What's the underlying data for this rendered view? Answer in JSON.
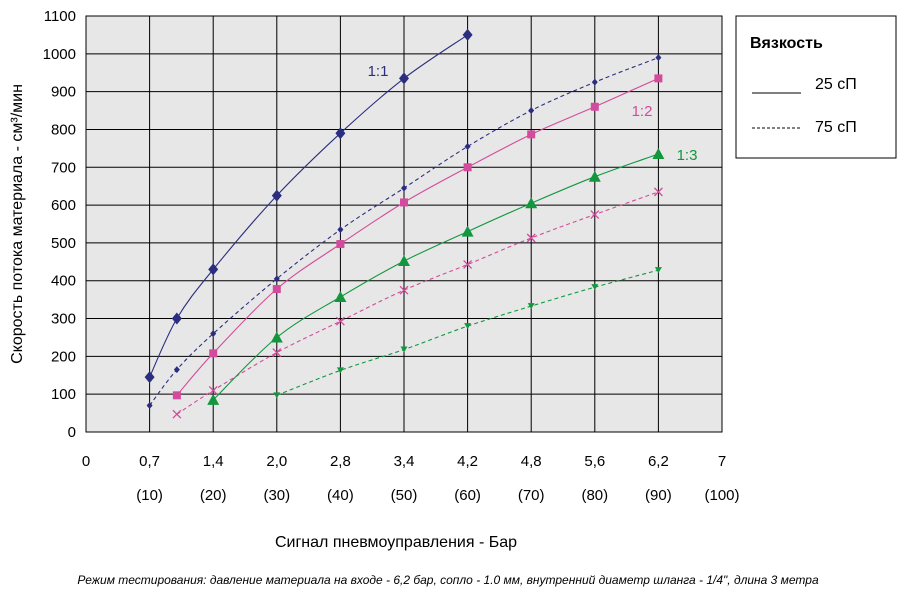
{
  "chart_data": {
    "type": "line",
    "xlabel": "Сигнал пневмоуправления - Бар",
    "ylabel": "Скорость потока материала - см³/мин",
    "footnote": "Режим тестирования: давление материала на входе - 6,2 бар, сопло - 1.0 мм, внутренний диаметр шланга - 1/4\", длина 3 метра",
    "ylim": [
      0,
      1100
    ],
    "y_ticks": [
      "0",
      "100",
      "200",
      "300",
      "400",
      "500",
      "600",
      "700",
      "800",
      "900",
      "1000",
      "1100"
    ],
    "x_ticks": [
      {
        "top": "0",
        "bottom": ""
      },
      {
        "top": "0,7",
        "bottom": "(10)"
      },
      {
        "top": "1,4",
        "bottom": "(20)"
      },
      {
        "top": "2,0",
        "bottom": "(30)"
      },
      {
        "top": "2,8",
        "bottom": "(40)"
      },
      {
        "top": "3,4",
        "bottom": "(50)"
      },
      {
        "top": "4,2",
        "bottom": "(60)"
      },
      {
        "top": "4,8",
        "bottom": "(70)"
      },
      {
        "top": "5,6",
        "bottom": "(80)"
      },
      {
        "top": "6,2",
        "bottom": "(90)"
      },
      {
        "top": "7",
        "bottom": "(100)"
      }
    ],
    "grid": "vertical and horizontal",
    "legend": {
      "title": "Вязкость",
      "position": "right",
      "entries": [
        {
          "label": "25 сП",
          "style": "solid"
        },
        {
          "label": "75 сП",
          "style": "dashed"
        }
      ]
    },
    "series": [
      {
        "label": "1:1",
        "viscosity": "25 сП",
        "color": "#2b2e7f",
        "marker": "diamond",
        "dash": false,
        "points": [
          [
            0.7,
            145
          ],
          [
            1.0,
            300
          ],
          [
            1.4,
            430
          ],
          [
            2.0,
            625
          ],
          [
            2.8,
            790
          ],
          [
            3.4,
            935
          ],
          [
            4.2,
            1050
          ]
        ]
      },
      {
        "label": "",
        "viscosity": "75 сП",
        "color": "#2b2e7f",
        "marker": "small-diamond",
        "dash": true,
        "points": [
          [
            0.7,
            70
          ],
          [
            1.0,
            165
          ],
          [
            1.4,
            260
          ],
          [
            2.0,
            405
          ],
          [
            2.8,
            535
          ],
          [
            3.4,
            645
          ],
          [
            4.2,
            755
          ],
          [
            4.8,
            850
          ],
          [
            5.6,
            925
          ],
          [
            6.2,
            990
          ]
        ]
      },
      {
        "label": "1:2",
        "viscosity": "25 сП",
        "color": "#d44a9c",
        "marker": "square",
        "dash": false,
        "points": [
          [
            1.0,
            97
          ],
          [
            1.4,
            208
          ],
          [
            2.0,
            378
          ],
          [
            2.8,
            497
          ],
          [
            3.4,
            607
          ],
          [
            4.2,
            700
          ],
          [
            4.8,
            787
          ],
          [
            5.6,
            860
          ],
          [
            6.2,
            935
          ]
        ]
      },
      {
        "label": "",
        "viscosity": "75 сП",
        "color": "#d44a9c",
        "marker": "x",
        "dash": true,
        "points": [
          [
            1.0,
            47
          ],
          [
            1.4,
            110
          ],
          [
            2.0,
            210
          ],
          [
            2.8,
            293
          ],
          [
            3.4,
            375
          ],
          [
            4.2,
            443
          ],
          [
            4.8,
            513
          ],
          [
            5.6,
            575
          ],
          [
            6.2,
            635
          ]
        ]
      },
      {
        "label": "1:3",
        "viscosity": "25 сП",
        "color": "#12973f",
        "marker": "triangle",
        "dash": false,
        "points": [
          [
            1.4,
            85
          ],
          [
            2.0,
            250
          ],
          [
            2.8,
            357
          ],
          [
            3.4,
            452
          ],
          [
            4.2,
            530
          ],
          [
            4.8,
            605
          ],
          [
            5.6,
            675
          ],
          [
            6.2,
            735
          ]
        ]
      },
      {
        "label": "",
        "viscosity": "75 сП",
        "color": "#12973f",
        "marker": "tri-down",
        "dash": true,
        "points": [
          [
            2.0,
            97
          ],
          [
            2.8,
            163
          ],
          [
            3.4,
            218
          ],
          [
            4.2,
            280
          ],
          [
            4.8,
            333
          ],
          [
            5.6,
            383
          ],
          [
            6.2,
            428
          ]
        ]
      }
    ]
  }
}
